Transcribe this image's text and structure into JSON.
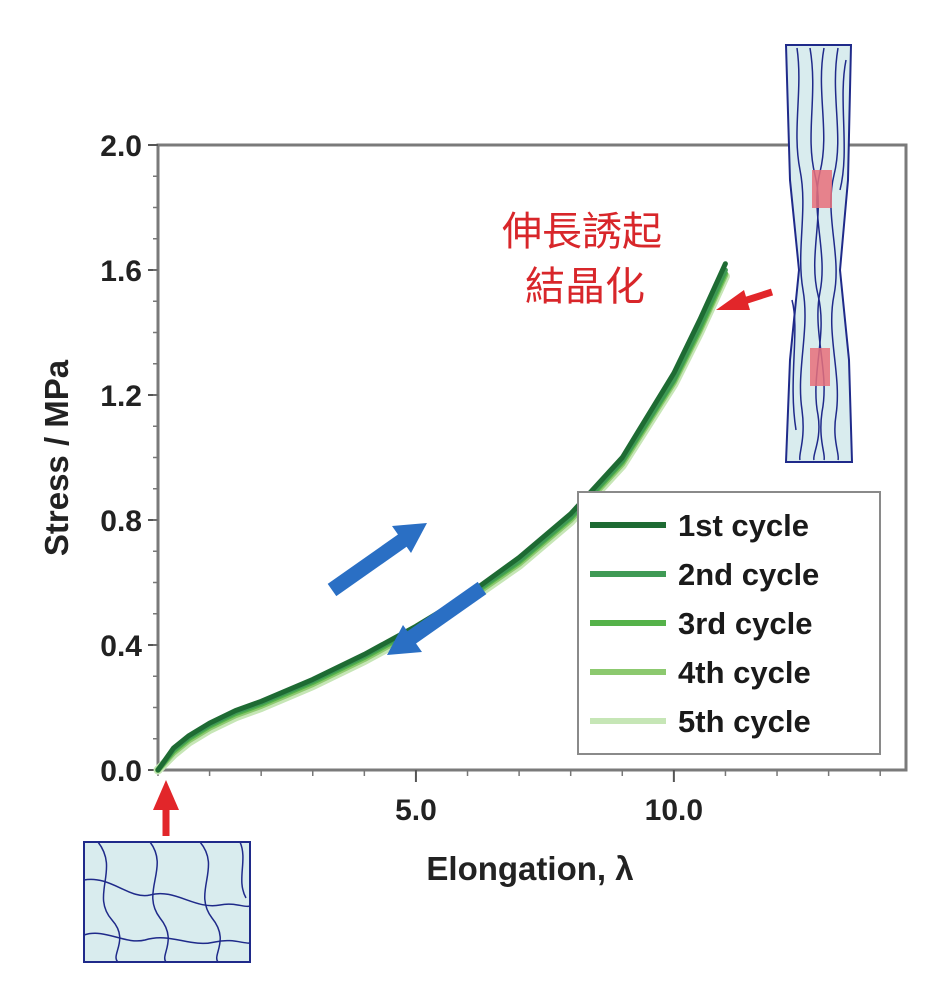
{
  "chart_data": {
    "type": "line",
    "title": "",
    "xlabel": "Elongation, λ",
    "ylabel": "Stress / MPa",
    "xlim": [
      0,
      14.5
    ],
    "ylim": [
      0,
      2.0
    ],
    "x_ticks": [
      5.0,
      10.0
    ],
    "x_tick_labels": [
      "5.0",
      "10.0"
    ],
    "y_ticks": [
      0.0,
      0.4,
      0.8,
      1.2,
      1.6,
      2.0
    ],
    "y_tick_labels": [
      "0.0",
      "0.4",
      "0.8",
      "1.2",
      "1.6",
      "2.0"
    ],
    "grid": false,
    "legend_position": "bottom-right",
    "x": [
      0.0,
      0.3,
      0.6,
      1.0,
      1.5,
      2.0,
      3.0,
      4.0,
      5.0,
      6.0,
      7.0,
      8.0,
      9.0,
      10.0,
      10.5,
      11.0
    ],
    "series": [
      {
        "name": "1st cycle",
        "color": "#1e6b33",
        "values": [
          0.0,
          0.07,
          0.11,
          0.15,
          0.19,
          0.22,
          0.29,
          0.37,
          0.46,
          0.56,
          0.68,
          0.82,
          1.0,
          1.27,
          1.44,
          1.62
        ]
      },
      {
        "name": "2nd cycle",
        "color": "#3f9a55",
        "values": [
          0.0,
          0.065,
          0.105,
          0.145,
          0.185,
          0.215,
          0.285,
          0.365,
          0.455,
          0.555,
          0.67,
          0.81,
          0.99,
          1.25,
          1.42,
          1.6
        ]
      },
      {
        "name": "3rd cycle",
        "color": "#55b24a",
        "values": [
          0.0,
          0.06,
          0.1,
          0.14,
          0.18,
          0.21,
          0.28,
          0.36,
          0.45,
          0.55,
          0.665,
          0.805,
          0.985,
          1.245,
          1.41,
          1.59
        ]
      },
      {
        "name": "4th cycle",
        "color": "#8cc96f",
        "values": [
          0.0,
          0.055,
          0.095,
          0.135,
          0.175,
          0.205,
          0.275,
          0.355,
          0.445,
          0.545,
          0.66,
          0.8,
          0.98,
          1.24,
          1.405,
          1.585
        ]
      },
      {
        "name": "5th cycle",
        "color": "#c6e6b6",
        "values": [
          0.0,
          0.05,
          0.09,
          0.13,
          0.17,
          0.2,
          0.27,
          0.35,
          0.44,
          0.54,
          0.655,
          0.795,
          0.975,
          1.235,
          1.4,
          1.58
        ]
      }
    ],
    "annotations": [
      {
        "text": "伸長誘起"
      },
      {
        "text": "結晶化"
      }
    ],
    "colors": {
      "annotation_text": "#d8262a",
      "red_arrow": "#e2262a",
      "blue_arrow": "#2a6fc4",
      "schematic_fill": "#d9ecee",
      "schematic_line": "#1f2a8a",
      "crystallite": "#e8707a"
    },
    "icons": [
      "loading-arrow-up",
      "unloading-arrow-down",
      "crystallization-pointer-arrow",
      "start-pointer-arrow",
      "stretched-network-schematic",
      "relaxed-network-schematic"
    ]
  }
}
